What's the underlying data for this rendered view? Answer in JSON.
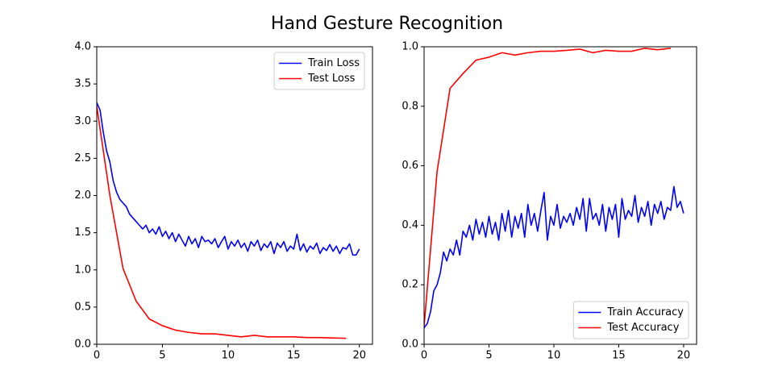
{
  "title": "Hand Gesture Recognition",
  "chart_data": [
    {
      "type": "line",
      "xlim": [
        0,
        21
      ],
      "xticks": [
        0,
        5,
        10,
        15,
        20
      ],
      "ylim": [
        0,
        4
      ],
      "yticks": [
        {
          "value": 0,
          "label": "0.0"
        },
        0.5,
        {
          "value": 1,
          "label": "1.0"
        },
        1.5,
        {
          "value": 2,
          "label": "2.0"
        },
        2.5,
        {
          "value": 3,
          "label": "3.0"
        },
        3.5,
        {
          "value": 4,
          "label": "4.0"
        }
      ],
      "grid": false,
      "legend": "upper right",
      "series": [
        {
          "name": "Train Loss",
          "color": "#0000ff",
          "x": [
            0,
            0.25,
            0.5,
            0.75,
            1,
            1.25,
            1.5,
            1.75,
            2,
            2.25,
            2.5,
            2.75,
            3,
            3.25,
            3.5,
            3.75,
            4,
            4.25,
            4.5,
            4.75,
            5,
            5.25,
            5.5,
            5.75,
            6,
            6.25,
            6.5,
            6.75,
            7,
            7.25,
            7.5,
            7.75,
            8,
            8.25,
            8.5,
            8.75,
            9,
            9.25,
            9.5,
            9.75,
            10,
            10.25,
            10.5,
            10.75,
            11,
            11.25,
            11.5,
            11.75,
            12,
            12.25,
            12.5,
            12.75,
            13,
            13.25,
            13.5,
            13.75,
            14,
            14.25,
            14.5,
            14.75,
            15,
            15.25,
            15.5,
            15.75,
            16,
            16.25,
            16.5,
            16.75,
            17,
            17.25,
            17.5,
            17.75,
            18,
            18.25,
            18.5,
            18.75,
            19,
            19.25,
            19.5,
            19.75,
            20
          ],
          "values": [
            3.25,
            3.15,
            2.85,
            2.6,
            2.45,
            2.2,
            2.05,
            1.95,
            1.9,
            1.85,
            1.75,
            1.7,
            1.65,
            1.6,
            1.55,
            1.6,
            1.5,
            1.55,
            1.48,
            1.58,
            1.45,
            1.52,
            1.42,
            1.5,
            1.38,
            1.48,
            1.4,
            1.32,
            1.45,
            1.35,
            1.42,
            1.3,
            1.45,
            1.38,
            1.4,
            1.35,
            1.42,
            1.3,
            1.38,
            1.45,
            1.28,
            1.38,
            1.32,
            1.4,
            1.3,
            1.36,
            1.25,
            1.38,
            1.32,
            1.4,
            1.26,
            1.35,
            1.3,
            1.38,
            1.22,
            1.36,
            1.3,
            1.38,
            1.25,
            1.32,
            1.28,
            1.48,
            1.26,
            1.35,
            1.24,
            1.32,
            1.28,
            1.36,
            1.22,
            1.3,
            1.26,
            1.34,
            1.25,
            1.32,
            1.22,
            1.3,
            1.28,
            1.35,
            1.2,
            1.2,
            1.28
          ]
        },
        {
          "name": "Test Loss",
          "color": "#ff0000",
          "x": [
            0,
            1,
            2,
            3,
            4,
            5,
            6,
            7,
            8,
            9,
            10,
            11,
            12,
            13,
            14,
            15,
            16,
            17,
            18,
            19
          ],
          "values": [
            3.2,
            2.0,
            1.02,
            0.58,
            0.34,
            0.25,
            0.19,
            0.16,
            0.14,
            0.14,
            0.12,
            0.1,
            0.12,
            0.1,
            0.1,
            0.1,
            0.09,
            0.09,
            0.085,
            0.08
          ]
        }
      ]
    },
    {
      "type": "line",
      "xlim": [
        0,
        21
      ],
      "xticks": [
        0,
        5,
        10,
        15,
        20
      ],
      "ylim": [
        0,
        1
      ],
      "yticks": [
        {
          "value": 0,
          "label": "0.0"
        },
        0.2,
        0.4,
        0.6,
        0.8,
        {
          "value": 1,
          "label": "1.0"
        }
      ],
      "grid": false,
      "legend": "lower right",
      "series": [
        {
          "name": "Train Accuracy",
          "color": "#0000ff",
          "x": [
            0,
            0.25,
            0.5,
            0.75,
            1,
            1.25,
            1.5,
            1.75,
            2,
            2.25,
            2.5,
            2.75,
            3,
            3.25,
            3.5,
            3.75,
            4,
            4.25,
            4.5,
            4.75,
            5,
            5.25,
            5.5,
            5.75,
            6,
            6.25,
            6.5,
            6.75,
            7,
            7.25,
            7.5,
            7.75,
            8,
            8.25,
            8.5,
            8.75,
            9,
            9.25,
            9.5,
            9.75,
            10,
            10.25,
            10.5,
            10.75,
            11,
            11.25,
            11.5,
            11.75,
            12,
            12.25,
            12.5,
            12.75,
            13,
            13.25,
            13.5,
            13.75,
            14,
            14.25,
            14.5,
            14.75,
            15,
            15.25,
            15.5,
            15.75,
            16,
            16.25,
            16.5,
            16.75,
            17,
            17.25,
            17.5,
            17.75,
            18,
            18.25,
            18.5,
            18.75,
            19,
            19.25,
            19.5,
            19.75,
            20
          ],
          "values": [
            0.055,
            0.07,
            0.11,
            0.18,
            0.2,
            0.24,
            0.31,
            0.28,
            0.32,
            0.3,
            0.35,
            0.3,
            0.38,
            0.36,
            0.4,
            0.35,
            0.42,
            0.37,
            0.41,
            0.36,
            0.43,
            0.37,
            0.41,
            0.35,
            0.44,
            0.38,
            0.45,
            0.36,
            0.43,
            0.39,
            0.44,
            0.36,
            0.47,
            0.4,
            0.44,
            0.38,
            0.45,
            0.51,
            0.35,
            0.43,
            0.4,
            0.47,
            0.39,
            0.43,
            0.41,
            0.44,
            0.4,
            0.46,
            0.42,
            0.49,
            0.38,
            0.49,
            0.42,
            0.44,
            0.4,
            0.47,
            0.38,
            0.46,
            0.42,
            0.47,
            0.36,
            0.49,
            0.42,
            0.45,
            0.43,
            0.5,
            0.41,
            0.46,
            0.43,
            0.48,
            0.4,
            0.47,
            0.44,
            0.48,
            0.42,
            0.46,
            0.45,
            0.53,
            0.46,
            0.48,
            0.44
          ]
        },
        {
          "name": "Test Accuracy",
          "color": "#ff0000",
          "x": [
            0,
            1,
            2,
            3,
            4,
            5,
            6,
            7,
            8,
            9,
            10,
            11,
            12,
            13,
            14,
            15,
            16,
            17,
            18,
            19
          ],
          "values": [
            0.06,
            0.58,
            0.86,
            0.91,
            0.955,
            0.965,
            0.98,
            0.972,
            0.98,
            0.985,
            0.985,
            0.988,
            0.992,
            0.98,
            0.988,
            0.985,
            0.985,
            0.995,
            0.99,
            0.995
          ]
        }
      ]
    }
  ]
}
